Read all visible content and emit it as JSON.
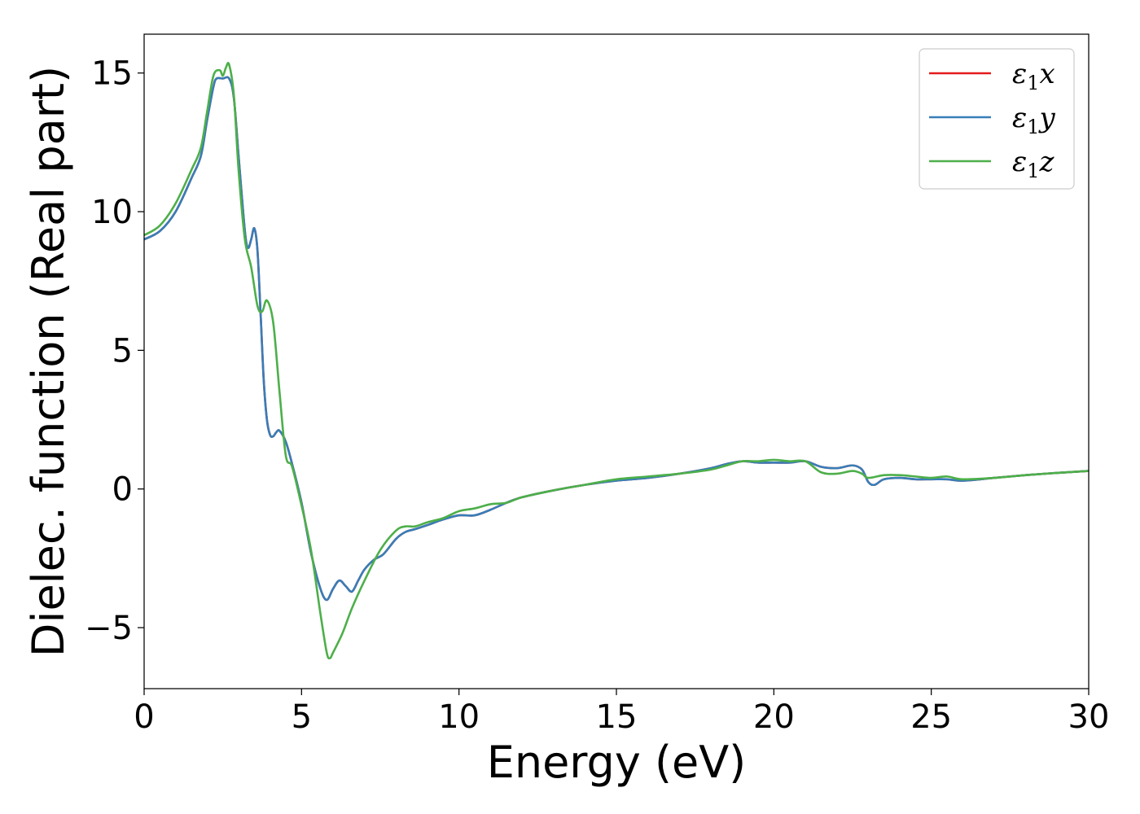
{
  "chart_data": {
    "type": "line",
    "title": "",
    "xlabel": "Energy (eV)",
    "ylabel": "Dielec. function (Real part)",
    "xlim": [
      0,
      30
    ],
    "ylim": [
      -7.2,
      16.4
    ],
    "xticks": [
      0,
      5,
      10,
      15,
      20,
      25,
      30
    ],
    "yticks": [
      -5,
      0,
      5,
      10,
      15
    ],
    "xtick_labels": [
      "0",
      "5",
      "10",
      "15",
      "20",
      "25",
      "30"
    ],
    "ytick_labels": [
      "−5",
      "0",
      "5",
      "10",
      "15"
    ],
    "grid": false,
    "legend_position": "top-right",
    "series": [
      {
        "name": "ε1x",
        "legend": {
          "main": "ε",
          "sub": "1",
          "suffix": "x"
        },
        "color": "#e41a1c",
        "x": [
          0,
          0.5,
          1.0,
          1.5,
          1.8,
          2.0,
          2.2,
          2.3,
          2.5,
          2.7,
          2.85,
          3.0,
          3.2,
          3.3,
          3.4,
          3.5,
          3.6,
          3.7,
          3.8,
          3.9,
          4.0,
          4.1,
          4.2,
          4.3,
          4.5,
          4.7,
          5.0,
          5.3,
          5.6,
          5.8,
          6.0,
          6.2,
          6.4,
          6.6,
          6.8,
          7.0,
          7.3,
          7.6,
          8.0,
          8.3,
          8.6,
          9.0,
          9.5,
          10.0,
          10.5,
          11.0,
          11.5,
          12.0,
          13.0,
          14.0,
          15.0,
          16.0,
          17.0,
          18.0,
          18.5,
          19.0,
          19.5,
          20.0,
          20.5,
          21.0,
          21.5,
          22.0,
          22.5,
          22.8,
          23.0,
          23.2,
          23.5,
          24.0,
          24.5,
          25.0,
          25.5,
          26.0,
          27.0,
          28.0,
          29.0,
          30.0
        ],
        "values": [
          9.0,
          9.3,
          10.0,
          11.2,
          12.0,
          13.3,
          14.5,
          14.8,
          14.8,
          14.8,
          14.1,
          12.0,
          9.3,
          8.7,
          9.0,
          9.4,
          8.6,
          6.3,
          3.9,
          2.5,
          1.95,
          1.9,
          2.05,
          2.1,
          1.7,
          0.9,
          -0.5,
          -2.3,
          -3.6,
          -4.0,
          -3.6,
          -3.3,
          -3.5,
          -3.7,
          -3.3,
          -2.9,
          -2.55,
          -2.35,
          -1.8,
          -1.55,
          -1.45,
          -1.3,
          -1.1,
          -0.95,
          -0.95,
          -0.75,
          -0.5,
          -0.3,
          -0.05,
          0.15,
          0.3,
          0.4,
          0.55,
          0.75,
          0.9,
          1.0,
          0.95,
          0.95,
          0.95,
          1.0,
          0.8,
          0.75,
          0.85,
          0.7,
          0.25,
          0.15,
          0.35,
          0.4,
          0.35,
          0.35,
          0.35,
          0.3,
          0.4,
          0.5,
          0.58,
          0.65
        ]
      },
      {
        "name": "ε1y",
        "legend": {
          "main": "ε",
          "sub": "1",
          "suffix": "y"
        },
        "color": "#377eb8",
        "x": [
          0,
          0.5,
          1.0,
          1.5,
          1.8,
          2.0,
          2.2,
          2.3,
          2.5,
          2.7,
          2.85,
          3.0,
          3.2,
          3.3,
          3.4,
          3.5,
          3.6,
          3.7,
          3.8,
          3.9,
          4.0,
          4.1,
          4.2,
          4.3,
          4.5,
          4.7,
          5.0,
          5.3,
          5.6,
          5.8,
          6.0,
          6.2,
          6.4,
          6.6,
          6.8,
          7.0,
          7.3,
          7.6,
          8.0,
          8.3,
          8.6,
          9.0,
          9.5,
          10.0,
          10.5,
          11.0,
          11.5,
          12.0,
          13.0,
          14.0,
          15.0,
          16.0,
          17.0,
          18.0,
          18.5,
          19.0,
          19.5,
          20.0,
          20.5,
          21.0,
          21.5,
          22.0,
          22.5,
          22.8,
          23.0,
          23.2,
          23.5,
          24.0,
          24.5,
          25.0,
          25.5,
          26.0,
          27.0,
          28.0,
          29.0,
          30.0
        ],
        "values": [
          9.0,
          9.3,
          10.0,
          11.2,
          12.0,
          13.3,
          14.5,
          14.8,
          14.8,
          14.8,
          14.1,
          12.0,
          9.3,
          8.7,
          9.0,
          9.4,
          8.6,
          6.3,
          3.9,
          2.5,
          1.95,
          1.9,
          2.05,
          2.1,
          1.7,
          0.9,
          -0.5,
          -2.3,
          -3.6,
          -4.0,
          -3.6,
          -3.3,
          -3.5,
          -3.7,
          -3.3,
          -2.9,
          -2.55,
          -2.35,
          -1.8,
          -1.55,
          -1.45,
          -1.3,
          -1.1,
          -0.95,
          -0.95,
          -0.75,
          -0.5,
          -0.3,
          -0.05,
          0.15,
          0.3,
          0.4,
          0.55,
          0.75,
          0.9,
          1.0,
          0.95,
          0.95,
          0.95,
          1.0,
          0.8,
          0.75,
          0.85,
          0.7,
          0.25,
          0.15,
          0.35,
          0.4,
          0.35,
          0.35,
          0.35,
          0.3,
          0.4,
          0.5,
          0.58,
          0.65
        ]
      },
      {
        "name": "ε1z",
        "legend": {
          "main": "ε",
          "sub": "1",
          "suffix": "z"
        },
        "color": "#4daf4a",
        "x": [
          0,
          0.5,
          1.0,
          1.5,
          1.8,
          2.0,
          2.2,
          2.4,
          2.5,
          2.6,
          2.7,
          2.85,
          3.0,
          3.2,
          3.4,
          3.6,
          3.75,
          3.9,
          4.1,
          4.3,
          4.5,
          4.7,
          5.0,
          5.3,
          5.6,
          5.8,
          5.9,
          6.0,
          6.3,
          6.6,
          7.0,
          7.5,
          8.0,
          8.3,
          8.6,
          9.0,
          9.5,
          10.0,
          10.5,
          11.0,
          11.5,
          12.0,
          13.0,
          14.0,
          15.0,
          16.0,
          17.0,
          18.0,
          18.5,
          19.0,
          19.5,
          20.0,
          20.5,
          21.0,
          21.5,
          22.0,
          22.5,
          22.8,
          23.0,
          23.5,
          24.0,
          24.5,
          25.0,
          25.5,
          26.0,
          27.0,
          28.0,
          29.0,
          30.0
        ],
        "values": [
          9.15,
          9.5,
          10.3,
          11.5,
          12.3,
          13.6,
          14.9,
          15.1,
          14.9,
          15.2,
          15.3,
          14.2,
          11.5,
          9.0,
          8.0,
          6.6,
          6.4,
          6.8,
          6.0,
          3.5,
          1.2,
          0.8,
          -0.6,
          -2.2,
          -4.5,
          -5.9,
          -6.1,
          -5.9,
          -5.2,
          -4.3,
          -3.3,
          -2.2,
          -1.5,
          -1.35,
          -1.35,
          -1.2,
          -1.05,
          -0.8,
          -0.7,
          -0.55,
          -0.5,
          -0.3,
          -0.05,
          0.15,
          0.35,
          0.45,
          0.55,
          0.7,
          0.85,
          1.0,
          1.0,
          1.05,
          1.0,
          1.0,
          0.6,
          0.55,
          0.65,
          0.55,
          0.4,
          0.5,
          0.5,
          0.45,
          0.4,
          0.45,
          0.35,
          0.4,
          0.5,
          0.58,
          0.65
        ]
      }
    ]
  }
}
